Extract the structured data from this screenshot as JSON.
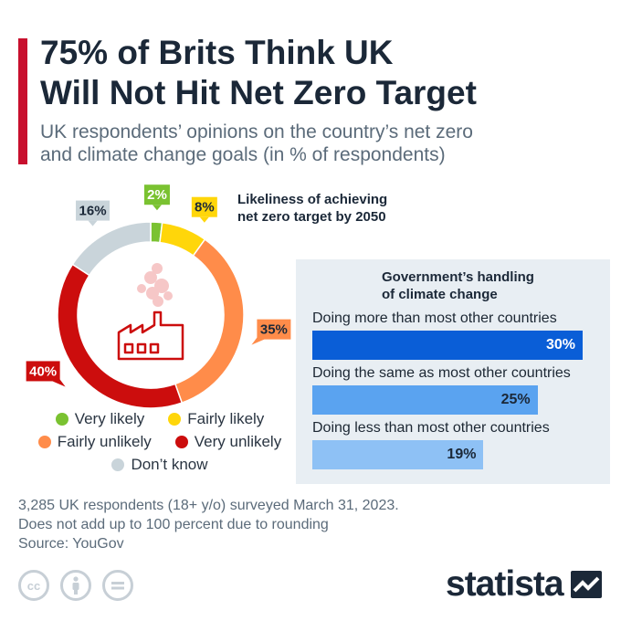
{
  "header": {
    "title_line1": "75% of Brits Think UK",
    "title_line2": "Will Not Hit Net Zero Target",
    "subtitle_line1": "UK respondents’ opinions on the country’s net zero",
    "subtitle_line2": "and climate change goals (in % of respondents)"
  },
  "chart_data": [
    {
      "type": "pie",
      "title_line1": "Likeliness of achieving",
      "title_line2": "net zero target by 2050",
      "categories": [
        "Very likely",
        "Fairly likely",
        "Fairly unlikely",
        "Very unlikely",
        "Don’t know"
      ],
      "values": [
        2,
        8,
        35,
        40,
        16
      ],
      "value_labels": [
        "2%",
        "8%",
        "35%",
        "40%",
        "16%"
      ],
      "colors": [
        "#7ac231",
        "#ffd60a",
        "#ff8c4a",
        "#cc0d0d",
        "#c9d4da"
      ],
      "legend_placement": "bottom"
    },
    {
      "type": "bar",
      "orientation": "horizontal",
      "title_line1": "Government’s handling",
      "title_line2": "of climate change",
      "categories": [
        "Doing more than most other countries",
        "Doing the same as most other countries",
        "Doing less than most other countries"
      ],
      "values": [
        30,
        25,
        19
      ],
      "value_labels": [
        "30%",
        "25%",
        "19%"
      ],
      "colors": [
        "#0a5ed7",
        "#5aa3f0",
        "#8ec1f5"
      ],
      "xlim": [
        0,
        30
      ]
    }
  ],
  "footer": {
    "line1": "3,285 UK respondents (18+ y/o) surveyed March 31, 2023.",
    "line2": "Does not add up to 100 percent due to rounding",
    "line3": "Source: YouGov"
  },
  "brand": {
    "name": "statista"
  },
  "icons": [
    "cc-icon",
    "attribution-icon",
    "no-derivatives-icon",
    "factory-icon",
    "statista-logo-icon"
  ]
}
